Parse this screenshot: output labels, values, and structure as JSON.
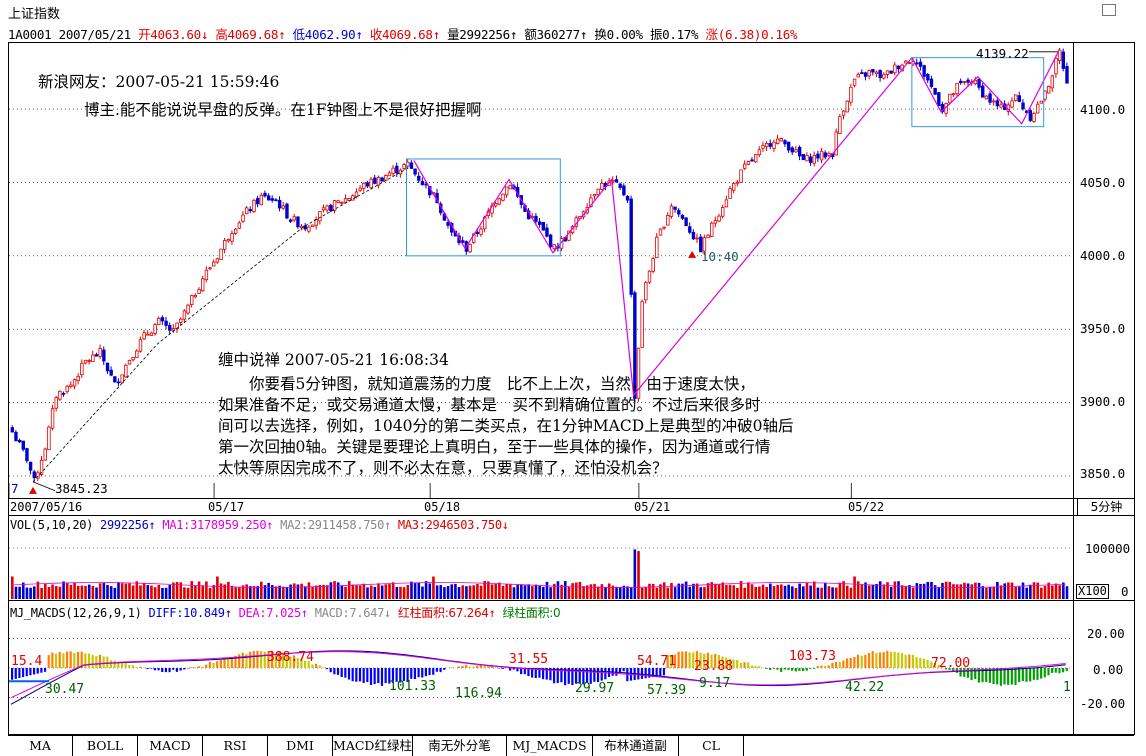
{
  "title": "上证指数",
  "info": {
    "code": "1A0001",
    "date": "2007/05/21",
    "open": "开4063.60",
    "open_arrow": "↓",
    "high": "高4069.68",
    "high_arrow": "↑",
    "low": "低4062.90",
    "low_arrow": "↑",
    "close": "收4069.68",
    "close_arrow": "↑",
    "volume": "量2992256",
    "volume_arrow": "↑",
    "amount": "额360277",
    "amount_arrow": "↑",
    "turnover": "换0.00%",
    "amplitude": "振0.17%",
    "change": "涨(6.38)0.16%"
  },
  "price_axis": {
    "ticks": [
      "4100.0",
      "4050.0",
      "4000.0",
      "3950.0",
      "3900.0",
      "3850.0"
    ],
    "unit_button": "5分钟"
  },
  "date_axis": [
    "2007/05/16",
    "05/17",
    "05/18",
    "05/21",
    "05/22"
  ],
  "price_annotations": {
    "high": "4139.22",
    "low": "3845.23",
    "low_left": "7",
    "marker": "10:40"
  },
  "comments": {
    "user": "新浪网友：2007-05-21 15:59:46",
    "question": "博主.能不能说说早盘的反弹。在1F钟图上不是很好把握啊",
    "author": "缠中说禅 2007-05-21 16:08:34",
    "answer": [
      "　　你要看5分钟图，就知道震荡的力度　比不上上次，当然，由于速度太快，",
      "如果准备不足，或交易通道太慢，基本是　买不到精确位置的。不过后来很多时",
      "间可以去选择，例如，1040分的第二类买点，在1分钟MACD上是典型的冲破0轴后",
      "第一次回抽0轴。关键是要理论上真明白，至于一些具体的操作，因为通道或行情",
      "太快等原因完成不了，则不必太在意，只要真懂了，还怕没机会？"
    ]
  },
  "vol_panel": {
    "label": "VOL(5,10,20)",
    "vol": "2992256",
    "vol_arrow": "↑",
    "ma1": "MA1:3178959.250",
    "ma1_arrow": "↑",
    "ma2": "MA2:2911458.750",
    "ma2_arrow": "↑",
    "ma3": "MA3:2946503.750",
    "ma3_arrow": "↓",
    "ticks": [
      "100000",
      "0"
    ],
    "unit": "X100"
  },
  "macd_panel": {
    "label": "MJ_MACDS(12,26,9,1)",
    "diff": "DIFF:10.849",
    "diff_arrow": "↑",
    "dea": "DEA:7.025",
    "dea_arrow": "↑",
    "macd": "MACD:7.647",
    "macd_arrow": "↓",
    "red_area": "红柱面积:67.264",
    "red_arrow": "↑",
    "green_area": "绿柱面积:0",
    "ticks": [
      "20.00",
      "0.00",
      "-20.00"
    ],
    "area_labels_red": [
      "15.4",
      "388.74",
      "31.55",
      "54.71",
      "23.88",
      "103.73",
      "72.00"
    ],
    "area_labels_green": [
      "30.47",
      "101.33",
      "116.94",
      "29.97",
      "57.39",
      "9.17",
      "42.22",
      "1"
    ]
  },
  "tabs": [
    "MA",
    "BOLL",
    "MACD",
    "RSI",
    "DMI",
    "MACD红绿柱",
    "南无外分笔",
    "MJ_MACDS",
    "布林通道副",
    "CL"
  ],
  "colors": {
    "up": "#e00000",
    "down": "#0000cc",
    "stroke": "#e000e0",
    "box": "#3399dd",
    "macd_up": "#ff8000",
    "macd_down": "#0000ff",
    "macd_weak": "#c8c800",
    "macd_green": "#00a000"
  },
  "chart_data": {
    "type": "candlestick",
    "title": "上证指数",
    "x_unit": "5-minute bars",
    "x_labels": [
      "2007/05/16",
      "05/17",
      "05/18",
      "05/21",
      "05/22"
    ],
    "ylim": [
      3835,
      4145
    ],
    "y_ticks": [
      3850,
      3900,
      3950,
      4000,
      4050,
      4100
    ],
    "close_path": [
      [
        0,
        3880
      ],
      [
        4,
        3862
      ],
      [
        6,
        3846
      ],
      [
        9,
        3870
      ],
      [
        12,
        3905
      ],
      [
        16,
        3912
      ],
      [
        20,
        3928
      ],
      [
        24,
        3934
      ],
      [
        28,
        3912
      ],
      [
        32,
        3930
      ],
      [
        36,
        3945
      ],
      [
        40,
        3955
      ],
      [
        44,
        3948
      ],
      [
        48,
        3965
      ],
      [
        52,
        3985
      ],
      [
        56,
        4000
      ],
      [
        60,
        4018
      ],
      [
        64,
        4030
      ],
      [
        68,
        4040
      ],
      [
        72,
        4038
      ],
      [
        76,
        4025
      ],
      [
        80,
        4020
      ],
      [
        84,
        4028
      ],
      [
        88,
        4035
      ],
      [
        92,
        4040
      ],
      [
        96,
        4048
      ],
      [
        100,
        4052
      ],
      [
        104,
        4058
      ],
      [
        108,
        4062
      ],
      [
        112,
        4050
      ],
      [
        116,
        4038
      ],
      [
        120,
        4015
      ],
      [
        124,
        4005
      ],
      [
        128,
        4020
      ],
      [
        132,
        4038
      ],
      [
        136,
        4050
      ],
      [
        140,
        4030
      ],
      [
        144,
        4020
      ],
      [
        148,
        4005
      ],
      [
        152,
        4015
      ],
      [
        156,
        4032
      ],
      [
        160,
        4048
      ],
      [
        164,
        4050
      ],
      [
        168,
        4040
      ],
      [
        170,
        3905
      ],
      [
        172,
        3970
      ],
      [
        176,
        4010
      ],
      [
        180,
        4035
      ],
      [
        184,
        4022
      ],
      [
        188,
        4005
      ],
      [
        192,
        4025
      ],
      [
        196,
        4045
      ],
      [
        200,
        4060
      ],
      [
        204,
        4070
      ],
      [
        208,
        4080
      ],
      [
        212,
        4075
      ],
      [
        216,
        4065
      ],
      [
        220,
        4068
      ],
      [
        224,
        4070
      ],
      [
        226,
        4095
      ],
      [
        230,
        4120
      ],
      [
        234,
        4125
      ],
      [
        238,
        4122
      ],
      [
        242,
        4130
      ],
      [
        246,
        4135
      ],
      [
        250,
        4120
      ],
      [
        254,
        4100
      ],
      [
        258,
        4115
      ],
      [
        262,
        4120
      ],
      [
        266,
        4108
      ],
      [
        270,
        4100
      ],
      [
        274,
        4108
      ],
      [
        278,
        4095
      ],
      [
        282,
        4110
      ],
      [
        286,
        4139
      ],
      [
        288,
        4120
      ]
    ],
    "stroke_pivots": [
      [
        0,
        3846
      ],
      [
        110,
        4065
      ],
      [
        124,
        4005
      ],
      [
        136,
        4052
      ],
      [
        148,
        4002
      ],
      [
        164,
        4052
      ],
      [
        170,
        3905
      ],
      [
        246,
        4135
      ],
      [
        254,
        4098
      ],
      [
        264,
        4122
      ],
      [
        276,
        4090
      ],
      [
        286,
        4139
      ]
    ],
    "boxes": [
      {
        "from": 108,
        "to": 150,
        "low": 4000,
        "high": 4066
      },
      {
        "from": 246,
        "to": 282,
        "low": 4088,
        "high": 4135
      }
    ],
    "volume_range": [
      0,
      120000
    ],
    "macd_range": [
      -30,
      30
    ]
  }
}
